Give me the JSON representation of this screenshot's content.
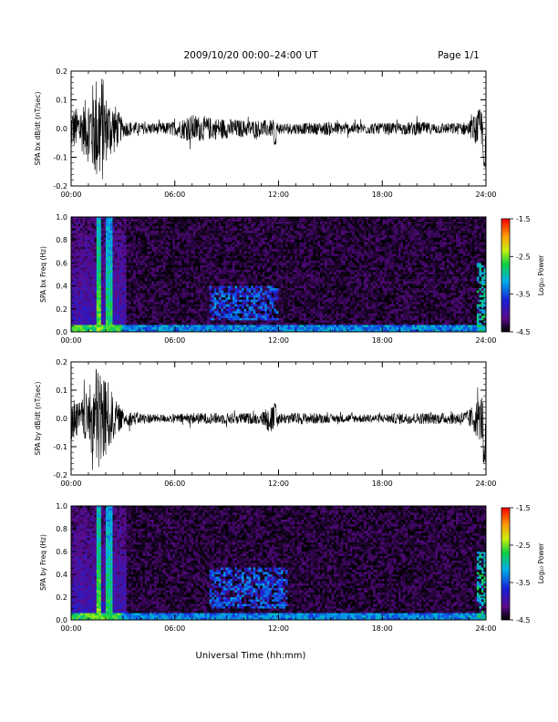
{
  "header": {
    "title": "2009/10/20  00:00–24:00 UT",
    "page": "Page 1/1"
  },
  "xaxis": {
    "label": "Universal Time (hh:mm)",
    "ticks": [
      "00:00",
      "06:00",
      "12:00",
      "18:00",
      "24:00"
    ],
    "range_hours": [
      0,
      24
    ]
  },
  "colorbar": {
    "label": "Log₁₀ Power",
    "ticks": [
      "-1.5",
      "-2.5",
      "-3.5",
      "-4.5"
    ],
    "range": [
      -4.5,
      -1.5
    ]
  },
  "chart_data": [
    {
      "type": "line",
      "ylabel": "SPA bx dB/dt (nT/sec)",
      "ylim": [
        -0.2,
        0.2
      ],
      "yticks": [
        "0.2",
        "0.1",
        "0.0",
        "-0.1",
        "-0.2"
      ],
      "x_hours": [
        0.0,
        0.5,
        1.0,
        1.5,
        1.8,
        2.0,
        2.5,
        3.0,
        4.0,
        5.0,
        6.0,
        7.0,
        8.0,
        9.0,
        10.0,
        11.0,
        11.8,
        12.0,
        13.0,
        14.0,
        15.0,
        16.0,
        17.0,
        18.0,
        19.0,
        20.0,
        21.0,
        22.0,
        23.0,
        23.9,
        24.0
      ],
      "amplitude": [
        0.08,
        0.07,
        0.12,
        0.2,
        0.2,
        0.12,
        0.09,
        0.03,
        0.02,
        0.02,
        0.025,
        0.05,
        0.04,
        0.035,
        0.03,
        0.03,
        0.03,
        0.02,
        0.02,
        0.02,
        0.025,
        0.02,
        0.02,
        0.02,
        0.02,
        0.025,
        0.02,
        0.02,
        0.025,
        0.09,
        0.15
      ],
      "events": [
        {
          "x": 11.8,
          "y": -0.06
        },
        {
          "x": 23.9,
          "y": -0.15
        }
      ]
    },
    {
      "type": "heatmap",
      "ylabel": "SPA bx Freq (Hz)",
      "ylim": [
        0.0,
        1.0
      ],
      "yticks": [
        "1.0",
        "0.8",
        "0.6",
        "0.4",
        "0.2",
        "0.0"
      ],
      "features": [
        {
          "kind": "broadband_stripe",
          "x_hours": 1.6,
          "level": -2.5
        },
        {
          "kind": "broadband_stripe",
          "x_hours": 2.2,
          "level": -2.7
        },
        {
          "kind": "enhancement",
          "x_range": [
            8.0,
            12.0
          ],
          "f_range": [
            0.1,
            0.4
          ],
          "level": -3.5
        },
        {
          "kind": "enhancement",
          "x_range": [
            23.5,
            24.0
          ],
          "f_range": [
            0.0,
            0.6
          ],
          "level": -3.0
        },
        {
          "kind": "low_freq_band",
          "f_range": [
            0.0,
            0.06
          ],
          "level": -3.3
        }
      ]
    },
    {
      "type": "line",
      "ylabel": "SPA by dB/dt (nT/sec)",
      "ylim": [
        -0.2,
        0.2
      ],
      "yticks": [
        "0.2",
        "0.1",
        "0.0",
        "-0.1",
        "-0.2"
      ],
      "x_hours": [
        0.0,
        0.5,
        1.0,
        1.5,
        1.8,
        2.0,
        2.5,
        3.0,
        4.0,
        5.0,
        6.0,
        7.0,
        8.0,
        9.0,
        10.0,
        11.0,
        11.8,
        12.0,
        13.0,
        14.0,
        15.0,
        16.0,
        17.0,
        18.0,
        19.0,
        20.0,
        21.0,
        22.0,
        23.0,
        23.9,
        24.0
      ],
      "amplitude": [
        0.08,
        0.06,
        0.1,
        0.2,
        0.2,
        0.15,
        0.07,
        0.03,
        0.02,
        0.015,
        0.015,
        0.02,
        0.02,
        0.02,
        0.02,
        0.02,
        0.07,
        0.02,
        0.02,
        0.02,
        0.015,
        0.015,
        0.015,
        0.015,
        0.02,
        0.02,
        0.02,
        0.02,
        0.03,
        0.1,
        0.12
      ],
      "events": [
        {
          "x": 11.8,
          "y": 0.06
        },
        {
          "x": 23.9,
          "y": -0.16
        }
      ]
    },
    {
      "type": "heatmap",
      "ylabel": "SPA by Freq (Hz)",
      "ylim": [
        0.0,
        1.0
      ],
      "yticks": [
        "1.0",
        "0.8",
        "0.6",
        "0.4",
        "0.2",
        "0.0"
      ],
      "features": [
        {
          "kind": "broadband_stripe",
          "x_hours": 1.6,
          "level": -2.5
        },
        {
          "kind": "broadband_stripe",
          "x_hours": 2.2,
          "level": -2.7
        },
        {
          "kind": "enhancement",
          "x_range": [
            8.0,
            12.5
          ],
          "f_range": [
            0.1,
            0.45
          ],
          "level": -3.5
        },
        {
          "kind": "enhancement",
          "x_range": [
            23.5,
            24.0
          ],
          "f_range": [
            0.0,
            0.6
          ],
          "level": -3.0
        },
        {
          "kind": "low_freq_band",
          "f_range": [
            0.0,
            0.06
          ],
          "level": -3.3
        }
      ]
    }
  ]
}
